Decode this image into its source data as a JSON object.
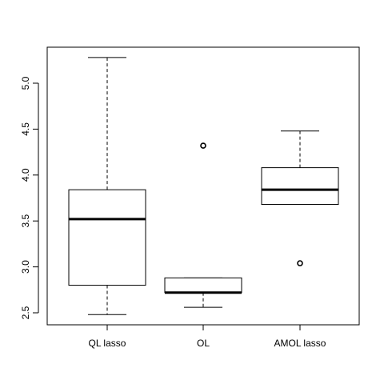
{
  "chart_data": {
    "type": "boxplot",
    "title": "",
    "xlabel": "",
    "ylabel": "",
    "ylim": [
      2.5,
      5.0
    ],
    "yticks": [
      "2.5",
      "3.0",
      "3.5",
      "4.0",
      "4.5",
      "5.0"
    ],
    "categories": [
      "QL lasso",
      "OL",
      "AMOL lasso"
    ],
    "series": [
      {
        "category": "QL lasso",
        "whisker_low": 2.48,
        "q1": 2.8,
        "median": 3.52,
        "q3": 3.84,
        "whisker_high": 5.28,
        "outliers": []
      },
      {
        "category": "OL",
        "whisker_low": 2.56,
        "q1": 2.72,
        "median": 2.72,
        "q3": 2.88,
        "whisker_high": 2.88,
        "outliers": [
          4.32
        ]
      },
      {
        "category": "AMOL lasso",
        "whisker_low": 3.68,
        "q1": 3.68,
        "median": 3.84,
        "q3": 4.08,
        "whisker_high": 4.48,
        "outliers": [
          3.04
        ]
      }
    ],
    "grid": false,
    "legend": "none"
  }
}
